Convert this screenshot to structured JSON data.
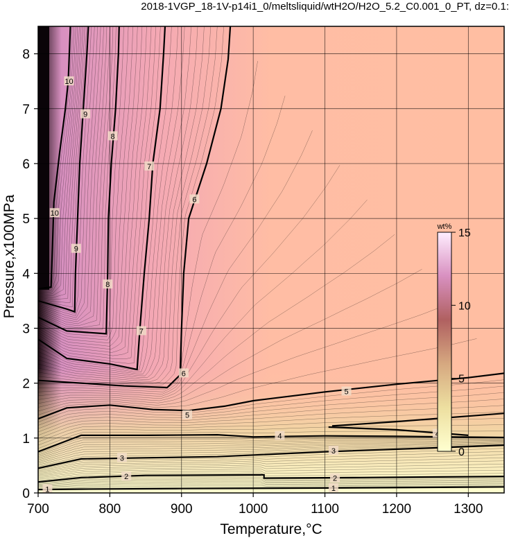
{
  "chart_data": {
    "type": "heatmap",
    "title": "2018-1VGP_18-1V-p14i1_0/meltsliquid/wtH2O/H2O_5.2_C0.001_0_PT, dz=0.1:",
    "xlabel": "Temperature,°C",
    "ylabel": "Pressure,x100MPa",
    "xlim": [
      700,
      1350
    ],
    "ylim": [
      0,
      8.5
    ],
    "x_ticks": [
      "700",
      "800",
      "900",
      "1000",
      "1100",
      "1200",
      "1300"
    ],
    "y_ticks": [
      "0",
      "1",
      "2",
      "3",
      "4",
      "5",
      "6",
      "7",
      "8"
    ],
    "grid": true,
    "colorbar": {
      "unit": "wt%",
      "min": 0,
      "max": 15,
      "ticks": [
        "0",
        "5",
        "10",
        "15"
      ],
      "colors": [
        "#ffffd0",
        "#eddfa0",
        "#d6a880",
        "#b06060",
        "#d890c0",
        "#ffeeff"
      ]
    },
    "contour_interval": 0.1,
    "contours": [
      {
        "level": 1,
        "label": "1",
        "points": [
          [
            700,
            0.06
          ],
          [
            760,
            0.07
          ],
          [
            900,
            0.08
          ],
          [
            1100,
            0.09
          ],
          [
            1350,
            0.11
          ]
        ]
      },
      {
        "level": 2,
        "label": "2",
        "points": [
          [
            700,
            0.2
          ],
          [
            760,
            0.28
          ],
          [
            850,
            0.32
          ],
          [
            1000,
            0.33
          ],
          [
            1015,
            0.33
          ],
          [
            1015,
            0.27
          ],
          [
            1150,
            0.28
          ],
          [
            1350,
            0.3
          ]
        ]
      },
      {
        "level": 3,
        "label": "3",
        "points": [
          [
            700,
            0.45
          ],
          [
            760,
            0.62
          ],
          [
            850,
            0.64
          ],
          [
            950,
            0.66
          ],
          [
            1100,
            0.75
          ],
          [
            1250,
            0.82
          ],
          [
            1350,
            0.87
          ]
        ]
      },
      {
        "level": 4,
        "label": "4",
        "points": [
          [
            700,
            0.75
          ],
          [
            760,
            1.05
          ],
          [
            850,
            1.05
          ],
          [
            950,
            1.06
          ],
          [
            1000,
            1.02
          ],
          [
            1100,
            1.04
          ],
          [
            1200,
            1.03
          ],
          [
            1350,
            1.01
          ]
        ]
      },
      {
        "level": 4.5,
        "label": "",
        "points": [
          [
            1105,
            1.2
          ],
          [
            1200,
            1.15
          ],
          [
            1300,
            1.05
          ]
        ]
      },
      {
        "level": 5,
        "label": "5",
        "points": [
          [
            700,
            1.35
          ],
          [
            740,
            1.55
          ],
          [
            800,
            1.6
          ],
          [
            860,
            1.52
          ],
          [
            910,
            1.5
          ],
          [
            960,
            1.58
          ],
          [
            1000,
            1.68
          ],
          [
            1100,
            1.84
          ],
          [
            1200,
            1.98
          ],
          [
            1300,
            2.1
          ],
          [
            1350,
            2.18
          ]
        ]
      },
      {
        "level": 5.5,
        "label": "",
        "points": [
          [
            1110,
            1.22
          ],
          [
            1200,
            1.3
          ],
          [
            1300,
            1.4
          ],
          [
            1350,
            1.45
          ]
        ]
      },
      {
        "level": 6,
        "label": "6",
        "points": [
          [
            700,
            2.05
          ],
          [
            760,
            2.0
          ],
          [
            820,
            1.95
          ],
          [
            880,
            1.92
          ],
          [
            898,
            2.15
          ],
          [
            900,
            3.0
          ],
          [
            903,
            4.0
          ],
          [
            910,
            5.0
          ],
          [
            935,
            6.0
          ],
          [
            955,
            7.0
          ],
          [
            965,
            7.9
          ],
          [
            968,
            8.5
          ]
        ]
      },
      {
        "level": 7,
        "label": "7",
        "points": [
          [
            700,
            2.8
          ],
          [
            740,
            2.45
          ],
          [
            800,
            2.35
          ],
          [
            838,
            2.25
          ],
          [
            842,
            3.0
          ],
          [
            848,
            4.0
          ],
          [
            855,
            5.0
          ],
          [
            860,
            6.0
          ],
          [
            870,
            7.0
          ],
          [
            875,
            8.0
          ],
          [
            877,
            8.5
          ]
        ]
      },
      {
        "level": 8,
        "label": "8",
        "points": [
          [
            700,
            3.2
          ],
          [
            740,
            2.95
          ],
          [
            795,
            2.9
          ],
          [
            797,
            4.0
          ],
          [
            798,
            5.0
          ],
          [
            802,
            6.0
          ],
          [
            808,
            7.0
          ],
          [
            812,
            8.0
          ],
          [
            813,
            8.5
          ]
        ]
      },
      {
        "level": 9,
        "label": "9",
        "points": [
          [
            700,
            3.5
          ],
          [
            740,
            3.35
          ],
          [
            751,
            3.3
          ],
          [
            752,
            4.0
          ],
          [
            755,
            5.0
          ],
          [
            758,
            6.0
          ],
          [
            763,
            7.0
          ],
          [
            768,
            8.0
          ],
          [
            770,
            8.5
          ]
        ]
      },
      {
        "level": 10,
        "label": "10",
        "points": [
          [
            700,
            3.72
          ],
          [
            718,
            3.75
          ],
          [
            720,
            4.5
          ],
          [
            722,
            5.3
          ],
          [
            730,
            6.2
          ],
          [
            738,
            7.0
          ],
          [
            742,
            7.5
          ],
          [
            745,
            8.5
          ]
        ]
      }
    ],
    "contour_labels": [
      {
        "text": "1",
        "x": 713,
        "y": 0.07
      },
      {
        "text": "1",
        "x": 1112,
        "y": 0.09
      },
      {
        "text": "2",
        "x": 823,
        "y": 0.3
      },
      {
        "text": "2",
        "x": 1114,
        "y": 0.27
      },
      {
        "text": "3",
        "x": 817,
        "y": 0.64
      },
      {
        "text": "3",
        "x": 1112,
        "y": 0.77
      },
      {
        "text": "4",
        "x": 1037,
        "y": 1.04
      },
      {
        "text": "4",
        "x": 1257,
        "y": 1.08
      },
      {
        "text": "5",
        "x": 908,
        "y": 1.42
      },
      {
        "text": "5",
        "x": 1130,
        "y": 1.85
      },
      {
        "text": "6",
        "x": 903,
        "y": 2.18
      },
      {
        "text": "6",
        "x": 918,
        "y": 5.35
      },
      {
        "text": "7",
        "x": 844,
        "y": 2.95
      },
      {
        "text": "7",
        "x": 855,
        "y": 5.95
      },
      {
        "text": "8",
        "x": 797,
        "y": 3.8
      },
      {
        "text": "8",
        "x": 804,
        "y": 6.5
      },
      {
        "text": "9",
        "x": 753,
        "y": 4.45
      },
      {
        "text": "9",
        "x": 766,
        "y": 6.9
      },
      {
        "text": "10",
        "x": 723,
        "y": 5.1
      },
      {
        "text": "10",
        "x": 743,
        "y": 7.5
      }
    ]
  }
}
